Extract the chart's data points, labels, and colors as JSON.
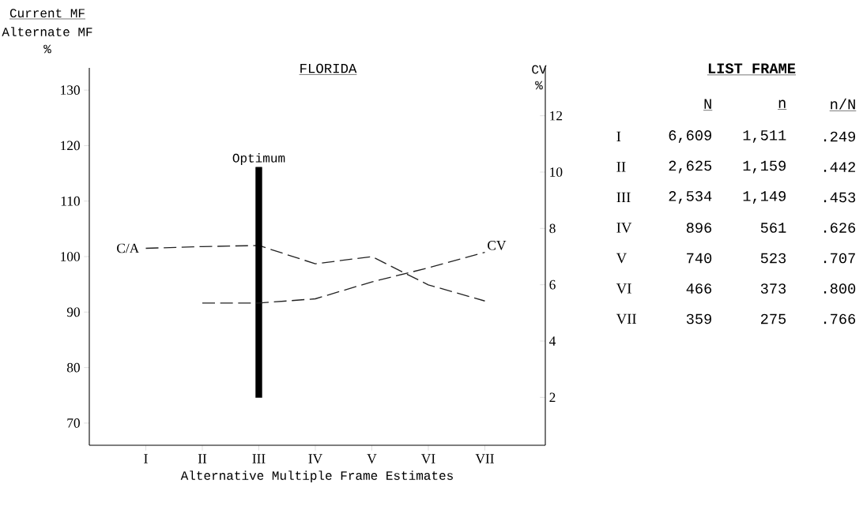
{
  "chart_data": [
    {
      "type": "line",
      "title": "FLORIDA",
      "xlabel": "Alternative Multiple Frame Estimates",
      "ylabel": "Current MF",
      "y2label": "CV",
      "annotations": [
        "Alternate MF",
        "%",
        "%"
      ],
      "categories": [
        "I",
        "II",
        "III",
        "IV",
        "V",
        "VI",
        "VII"
      ],
      "ylim": [
        66,
        134
      ],
      "yticks": [
        70,
        80,
        90,
        100,
        110,
        120,
        130
      ],
      "y2lim": [
        0.3,
        13.7
      ],
      "y2ticks": [
        2,
        4,
        6,
        8,
        10,
        12
      ],
      "line_style": "dashed",
      "marker": "none",
      "series": [
        {
          "name": "C/A",
          "type": "line",
          "color": "#222222",
          "values": [
            101.5,
            101.8,
            102,
            98.7,
            100,
            94.9,
            92
          ]
        },
        {
          "name": "CV",
          "type": "line",
          "axis": "y2",
          "color": "#222222",
          "values": [
            null,
            5.35,
            5.35,
            5.5,
            6.1,
            6.6,
            7.15
          ]
        },
        {
          "name": "Optimum",
          "type": "bar",
          "color": "#000000",
          "values": [
            null,
            null,
            41.5,
            null,
            null,
            null,
            null
          ],
          "base": [
            null,
            null,
            74.6,
            null,
            null,
            null,
            null
          ]
        }
      ]
    },
    {
      "type": "other",
      "title": "LIST FRAME",
      "categories": [
        "N",
        "n",
        "n/N"
      ],
      "y_categories": [
        "I",
        "II",
        "III",
        "IV",
        "V",
        "VI",
        "VII"
      ],
      "cell_labels": [
        [
          "6,609",
          "1,511",
          ".249"
        ],
        [
          "2,625",
          "1,159",
          ".442"
        ],
        [
          "2,534",
          "1,149",
          ".453"
        ],
        [
          "896",
          "561",
          ".626"
        ],
        [
          "740",
          "523",
          ".707"
        ],
        [
          "466",
          "373",
          ".800"
        ],
        [
          "359",
          "275",
          ".766"
        ]
      ]
    }
  ]
}
